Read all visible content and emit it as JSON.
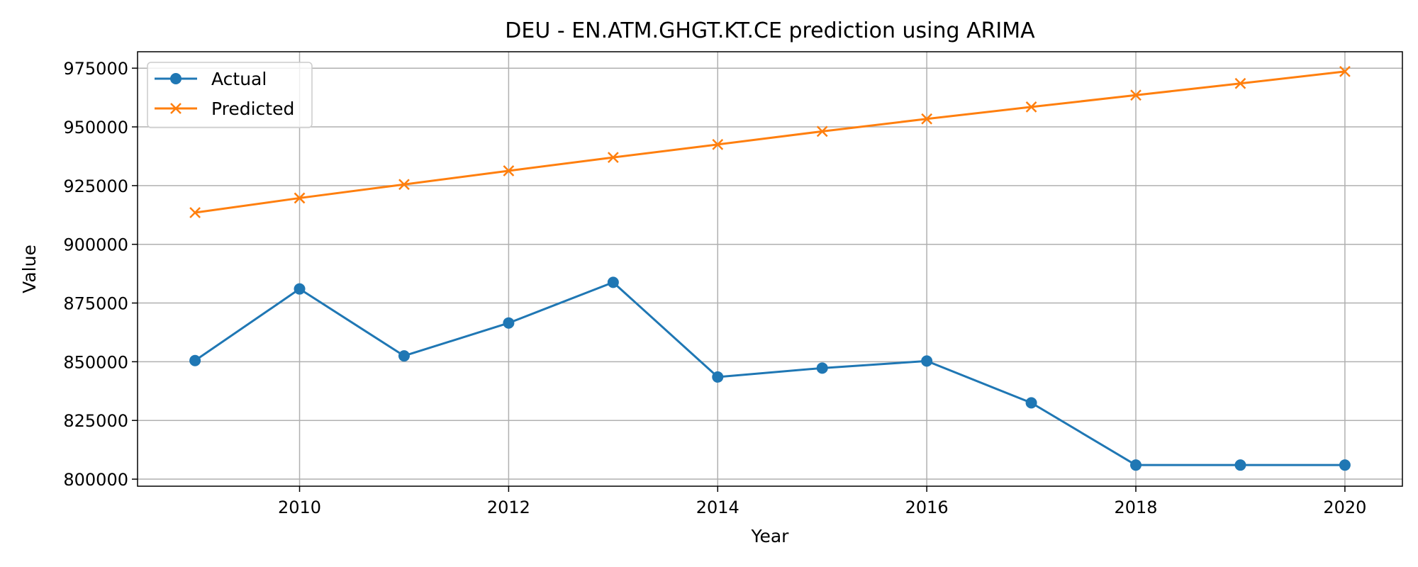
{
  "chart_data": {
    "type": "line",
    "title": "DEU - EN.ATM.GHGT.KT.CE prediction using ARIMA",
    "xlabel": "Year",
    "ylabel": "Value",
    "x": [
      2009,
      2010,
      2011,
      2012,
      2013,
      2014,
      2015,
      2016,
      2017,
      2018,
      2019,
      2020
    ],
    "xlim": [
      2008.45,
      2020.55
    ],
    "ylim": [
      797000,
      982000
    ],
    "xticks": [
      2010,
      2012,
      2014,
      2016,
      2018,
      2020
    ],
    "yticks": [
      800000,
      825000,
      850000,
      875000,
      900000,
      925000,
      950000,
      975000
    ],
    "grid": true,
    "legend_position": "top-left",
    "series": [
      {
        "name": "Actual",
        "color": "#1f77b4",
        "marker": "circle",
        "values": [
          850500,
          881000,
          852500,
          866500,
          883800,
          843500,
          847300,
          850300,
          832500,
          806000,
          806000,
          806000
        ]
      },
      {
        "name": "Predicted",
        "color": "#ff7f0e",
        "marker": "x",
        "values": [
          913500,
          919700,
          925500,
          931300,
          937000,
          942500,
          948100,
          953400,
          958500,
          963500,
          968500,
          973600
        ]
      }
    ]
  }
}
